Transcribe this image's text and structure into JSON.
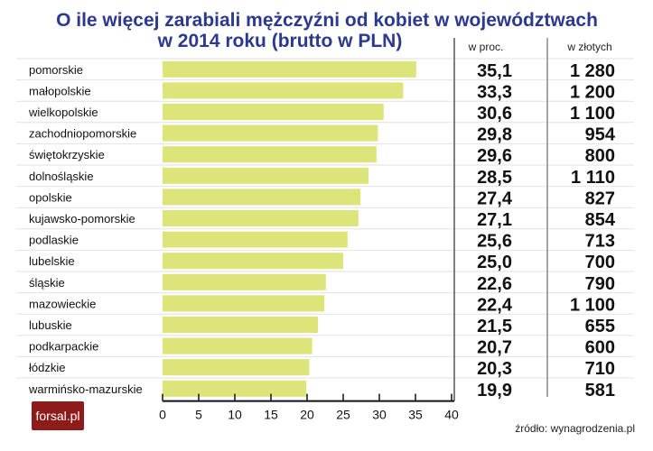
{
  "chart_data": {
    "type": "bar",
    "orientation": "horizontal",
    "title": "O ile więcej zarabiali mężczyźni od kobiet w województwach",
    "subtitle": "w 2014 roku (brutto w PLN)",
    "categories": [
      "pomorskie",
      "małopolskie",
      "wielkopolskie",
      "zachodniopomorskie",
      "świętokrzyskie",
      "dolnośląskie",
      "opolskie",
      "kujawsko-pomorskie",
      "podlaskie",
      "lubelskie",
      "śląskie",
      "mazowieckie",
      "lubuskie",
      "podkarpackie",
      "łódzkie",
      "warmińsko-mazurskie"
    ],
    "values": [
      35.1,
      33.3,
      30.6,
      29.8,
      29.6,
      28.5,
      27.4,
      27.1,
      25.6,
      25.0,
      22.6,
      22.4,
      21.5,
      20.7,
      20.3,
      19.9
    ],
    "values_label": [
      "35,1",
      "33,3",
      "30,6",
      "29,8",
      "29,6",
      "28,5",
      "27,4",
      "27,1",
      "25,6",
      "25,0",
      "22,6",
      "22,4",
      "21,5",
      "20,7",
      "20,3",
      "19,9"
    ],
    "pln_values": [
      "1 280",
      "1 200",
      "1 100",
      "954",
      "800",
      "1 110",
      "827",
      "854",
      "713",
      "700",
      "790",
      "1 100",
      "655",
      "600",
      "710",
      "581"
    ],
    "column_headers": [
      "w proc.",
      "w złotych"
    ],
    "xlim": [
      0,
      40
    ],
    "xticks": [
      "0",
      "5",
      "10",
      "15",
      "20",
      "25",
      "30",
      "35",
      "40"
    ],
    "bar_color": "#dde47a",
    "title_color": "#2b3990",
    "grid": false
  },
  "logo": "forsal.pl",
  "source": "źródło: wynagrodzenia.pl"
}
